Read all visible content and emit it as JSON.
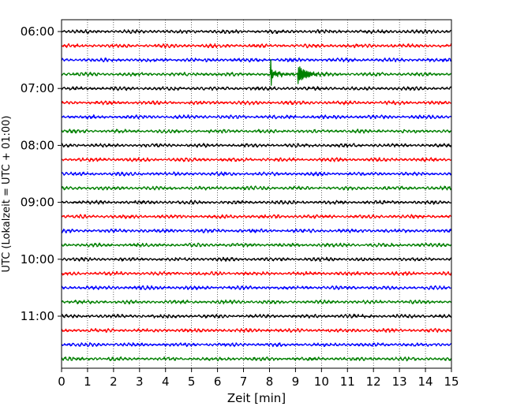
{
  "chart_data": {
    "type": "line",
    "xlabel": "Zeit  [min]",
    "ylabel": "UTC (Lokalzeit = UTC + 01:00)",
    "xlim": [
      0,
      15
    ],
    "x_ticks": [
      "0",
      "1",
      "2",
      "3",
      "4",
      "5",
      "6",
      "7",
      "8",
      "9",
      "10",
      "11",
      "12",
      "13",
      "14",
      "15"
    ],
    "y_ticks": [
      "06:00",
      "07:00",
      "08:00",
      "09:00",
      "10:00",
      "11:00"
    ],
    "grid": "vertical dotted",
    "trace_interval_minutes": 15,
    "first_trace": "06:00",
    "trace_count": 24,
    "trace_colors": [
      "#000000",
      "#ff0000",
      "#0000ff",
      "#008000"
    ],
    "event": {
      "trace_start": "06:45",
      "onset_minute": 8.05,
      "secondary_minute": 9.1,
      "end_minute": 10.5
    }
  }
}
